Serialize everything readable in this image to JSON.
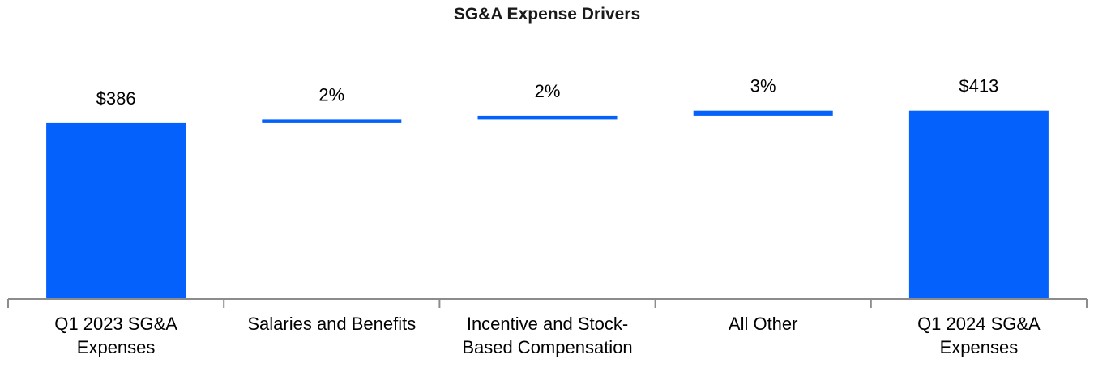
{
  "chart_data": {
    "type": "waterfall",
    "title": "SG&A Expense Drivers",
    "categories": [
      [
        "Q1 2023 SG&A",
        "Expenses"
      ],
      [
        "Salaries and Benefits"
      ],
      [
        "Incentive and Stock-",
        "Based Compensation"
      ],
      [
        "All Other"
      ],
      [
        "Q1 2024 SG&A",
        "Expenses"
      ]
    ],
    "bars": [
      {
        "kind": "total",
        "start": 0,
        "end": 386,
        "label": "$386"
      },
      {
        "kind": "delta",
        "start": 386,
        "end": 394,
        "label": "2%"
      },
      {
        "kind": "delta",
        "start": 394,
        "end": 402,
        "label": "2%"
      },
      {
        "kind": "delta",
        "start": 402,
        "end": 413,
        "label": "3%"
      },
      {
        "kind": "total",
        "start": 0,
        "end": 413,
        "label": "$413"
      }
    ],
    "ylim": [
      0,
      430
    ],
    "xlabel": "",
    "ylabel": "",
    "grid": false,
    "legend": false
  },
  "colors": {
    "bar": "#0561fc",
    "axis": "#8c8c8c"
  }
}
